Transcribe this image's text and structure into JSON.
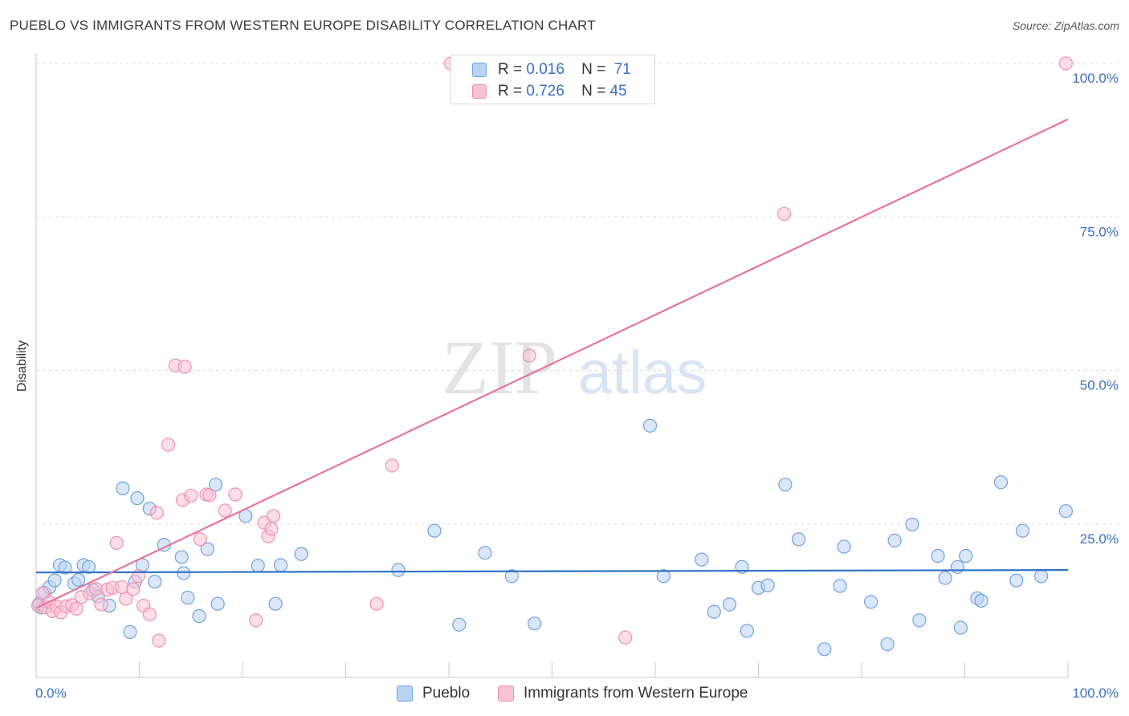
{
  "title": "PUEBLO VS IMMIGRANTS FROM WESTERN EUROPE DISABILITY CORRELATION CHART",
  "source": "Source: ZipAtlas.com",
  "watermark": {
    "zip": "ZIP",
    "atlas": "atlas"
  },
  "legend": {
    "r_label": "R =",
    "n_label": "N =",
    "series": [
      {
        "r": "0.016",
        "n": "71"
      },
      {
        "r": "0.726",
        "n": "45"
      }
    ]
  },
  "bottom_legend": [
    "Pueblo",
    "Immigrants from Western Europe"
  ],
  "chart_data": {
    "type": "scatter",
    "title": "PUEBLO VS IMMIGRANTS FROM WESTERN EUROPE DISABILITY CORRELATION CHART",
    "xlabel": "",
    "ylabel": "Disability",
    "xlim": [
      0,
      100
    ],
    "ylim": [
      0,
      100
    ],
    "x_tick_labels": [
      "0.0%",
      "100.0%"
    ],
    "y_ticks": [
      25,
      50,
      75,
      100
    ],
    "y_tick_labels": [
      "25.0%",
      "50.0%",
      "75.0%",
      "100.0%"
    ],
    "grid": "horizontal dashed",
    "legend_position": "top-center",
    "series": [
      {
        "name": "Pueblo",
        "color": "#6fa0e0",
        "fill": "#b9d3f3",
        "r": 0.016,
        "n": 71,
        "trend": {
          "x": [
            0,
            100
          ],
          "y": [
            17.1,
            17.5
          ],
          "color": "#2f73c6"
        },
        "points": [
          [
            0.5,
            11.4
          ],
          [
            0.8,
            13.8
          ],
          [
            1.3,
            14.7
          ],
          [
            1.8,
            15.8
          ],
          [
            2.3,
            18.3
          ],
          [
            2.8,
            17.9
          ],
          [
            3.7,
            15.3
          ],
          [
            4.1,
            15.9
          ],
          [
            4.6,
            18.3
          ],
          [
            5.1,
            18.0
          ],
          [
            5.5,
            14.2
          ],
          [
            6.0,
            13.2
          ],
          [
            7.1,
            11.7
          ],
          [
            8.4,
            30.8
          ],
          [
            9.1,
            7.4
          ],
          [
            9.6,
            15.6
          ],
          [
            9.8,
            29.2
          ],
          [
            10.3,
            18.3
          ],
          [
            11.0,
            27.5
          ],
          [
            11.5,
            15.6
          ],
          [
            12.4,
            21.6
          ],
          [
            14.1,
            19.6
          ],
          [
            14.3,
            17.0
          ],
          [
            14.7,
            13.0
          ],
          [
            15.8,
            10.0
          ],
          [
            16.6,
            20.9
          ],
          [
            17.4,
            31.4
          ],
          [
            17.6,
            12.0
          ],
          [
            20.3,
            26.3
          ],
          [
            21.5,
            18.2
          ],
          [
            23.2,
            12.0
          ],
          [
            23.7,
            18.3
          ],
          [
            25.7,
            20.1
          ],
          [
            35.1,
            17.5
          ],
          [
            38.6,
            23.9
          ],
          [
            41.0,
            8.6
          ],
          [
            43.5,
            20.3
          ],
          [
            46.1,
            16.5
          ],
          [
            48.3,
            8.8
          ],
          [
            59.5,
            41.0
          ],
          [
            60.8,
            16.5
          ],
          [
            64.5,
            19.2
          ],
          [
            65.7,
            10.7
          ],
          [
            67.2,
            11.9
          ],
          [
            68.4,
            18.0
          ],
          [
            68.9,
            7.6
          ],
          [
            70.0,
            14.6
          ],
          [
            70.9,
            15.0
          ],
          [
            72.6,
            31.4
          ],
          [
            73.9,
            22.5
          ],
          [
            76.4,
            4.6
          ],
          [
            77.9,
            14.9
          ],
          [
            78.3,
            21.3
          ],
          [
            80.9,
            12.3
          ],
          [
            82.5,
            5.4
          ],
          [
            83.2,
            22.3
          ],
          [
            84.9,
            24.9
          ],
          [
            85.6,
            9.3
          ],
          [
            87.4,
            19.8
          ],
          [
            88.1,
            16.2
          ],
          [
            89.3,
            18.0
          ],
          [
            89.6,
            8.1
          ],
          [
            90.1,
            19.8
          ],
          [
            91.2,
            12.9
          ],
          [
            91.6,
            12.5
          ],
          [
            93.5,
            31.8
          ],
          [
            95.0,
            15.8
          ],
          [
            95.6,
            23.9
          ],
          [
            97.4,
            16.5
          ],
          [
            99.8,
            27.1
          ],
          [
            0.3,
            12.0
          ]
        ]
      },
      {
        "name": "Immigrants from Western Europe",
        "color": "#f08fae",
        "fill": "#f8c3d4",
        "r": 0.726,
        "n": 45,
        "trend": {
          "x": [
            0,
            100
          ],
          "y": [
            11.3,
            90.9
          ],
          "color": "#e8739c"
        },
        "points": [
          [
            0.2,
            11.7
          ],
          [
            0.6,
            13.7
          ],
          [
            0.9,
            11.4
          ],
          [
            1.3,
            12.3
          ],
          [
            1.6,
            10.8
          ],
          [
            2.0,
            11.5
          ],
          [
            2.4,
            10.6
          ],
          [
            2.9,
            11.6
          ],
          [
            3.5,
            11.8
          ],
          [
            3.9,
            11.2
          ],
          [
            4.4,
            13.1
          ],
          [
            5.2,
            13.7
          ],
          [
            5.8,
            14.4
          ],
          [
            6.3,
            11.9
          ],
          [
            6.9,
            14.3
          ],
          [
            7.4,
            14.6
          ],
          [
            7.8,
            21.9
          ],
          [
            8.3,
            14.7
          ],
          [
            8.7,
            12.8
          ],
          [
            9.4,
            14.4
          ],
          [
            9.9,
            16.5
          ],
          [
            10.4,
            11.7
          ],
          [
            11.0,
            10.3
          ],
          [
            11.7,
            26.8
          ],
          [
            11.9,
            6.0
          ],
          [
            12.8,
            37.9
          ],
          [
            13.5,
            50.8
          ],
          [
            14.2,
            28.9
          ],
          [
            14.4,
            50.6
          ],
          [
            15.0,
            29.6
          ],
          [
            15.9,
            22.5
          ],
          [
            16.5,
            29.8
          ],
          [
            16.8,
            29.7
          ],
          [
            18.3,
            27.2
          ],
          [
            19.3,
            29.8
          ],
          [
            21.3,
            9.3
          ],
          [
            22.1,
            25.2
          ],
          [
            22.5,
            23.0
          ],
          [
            22.8,
            24.2
          ],
          [
            23.0,
            26.3
          ],
          [
            33.0,
            12.0
          ],
          [
            34.5,
            34.5
          ],
          [
            47.8,
            52.4
          ],
          [
            57.1,
            6.5
          ],
          [
            72.5,
            75.5
          ]
        ],
        "extra_points": [
          [
            40.2,
            100.0
          ],
          [
            99.8,
            100.0
          ]
        ]
      }
    ]
  }
}
